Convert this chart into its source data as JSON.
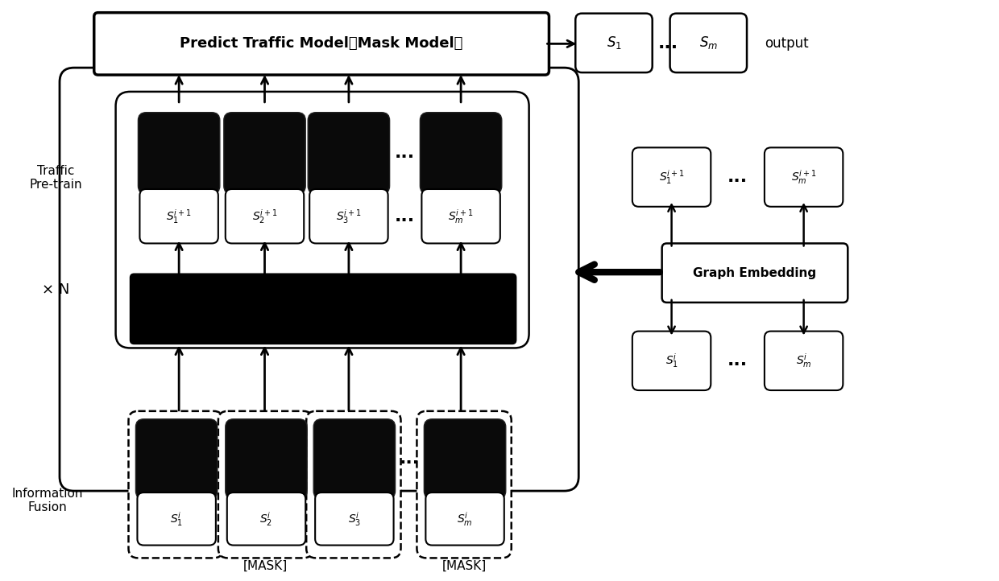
{
  "bg_color": "#ffffff",
  "predict_text": "Predict Traffic Model（Mask Model）",
  "traffic_pretrain_label": "Traffic\nPre-train",
  "xN_label": "× N",
  "info_fusion_label": "Information\nFusion",
  "graph_embed_text": "Graph Embedding",
  "output_text": "output",
  "mask_label": "[MASK]",
  "dots": "...",
  "labels_top": [
    "$S_1^{i+1}$",
    "$S_2^{i+1}$",
    "$S_3^{i+1}$",
    "$S_m^{i+1}$"
  ],
  "labels_inf": [
    "$S_1^{i}$",
    "$S_2^{i}$",
    "$S_3^{i}$",
    "$S_m^{i}$"
  ],
  "label_s1_out": "$S_1$",
  "label_sm_out": "$S_m$",
  "label_s1_top_right": "$S_1^{i+1}$",
  "label_sm_top_right": "$S_m^{i+1}$",
  "label_s1_bot_right": "$S_1^{i}$",
  "label_sm_bot_right": "$S_m^{i}$"
}
